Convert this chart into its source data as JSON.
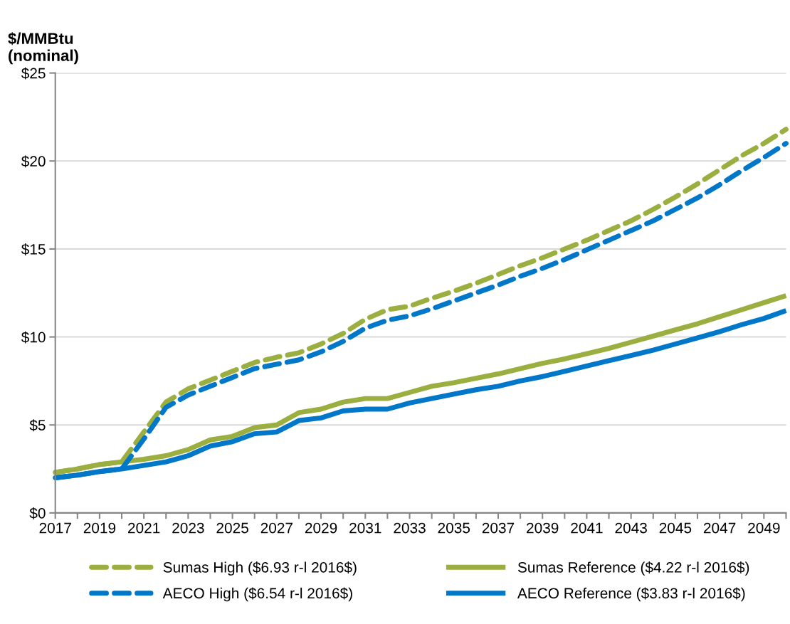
{
  "chart_data": {
    "type": "line",
    "ylabel": "$/MMBtu\n(nominal)",
    "x": [
      2017,
      2018,
      2019,
      2020,
      2021,
      2022,
      2023,
      2024,
      2025,
      2026,
      2027,
      2028,
      2029,
      2030,
      2031,
      2032,
      2033,
      2034,
      2035,
      2036,
      2037,
      2038,
      2039,
      2040,
      2041,
      2042,
      2043,
      2044,
      2045,
      2046,
      2047,
      2048,
      2049,
      2050
    ],
    "xlim": [
      2017,
      2050
    ],
    "xticks": [
      2017,
      {
        "value": 2018,
        "label": null
      },
      2019,
      {
        "value": 2020,
        "label": null
      },
      2021,
      {
        "value": 2022,
        "label": null
      },
      2023,
      {
        "value": 2024,
        "label": null
      },
      2025,
      {
        "value": 2026,
        "label": null
      },
      2027,
      {
        "value": 2028,
        "label": null
      },
      2029,
      {
        "value": 2030,
        "label": null
      },
      2031,
      {
        "value": 2032,
        "label": null
      },
      2033,
      {
        "value": 2034,
        "label": null
      },
      2035,
      {
        "value": 2036,
        "label": null
      },
      2037,
      {
        "value": 2038,
        "label": null
      },
      2039,
      {
        "value": 2040,
        "label": null
      },
      2041,
      {
        "value": 2042,
        "label": null
      },
      2043,
      {
        "value": 2044,
        "label": null
      },
      2045,
      {
        "value": 2046,
        "label": null
      },
      2047,
      {
        "value": 2048,
        "label": null
      },
      2049,
      {
        "value": 2050,
        "label": null
      }
    ],
    "ylim": [
      0,
      25
    ],
    "yticks": [
      {
        "value": 0,
        "label": "$0"
      },
      {
        "value": 5,
        "label": "$5"
      },
      {
        "value": 10,
        "label": "$10"
      },
      {
        "value": 15,
        "label": "$15"
      },
      {
        "value": 20,
        "label": "$20"
      },
      {
        "value": 25,
        "label": "$25"
      }
    ],
    "grid": "y",
    "legend": "bottom",
    "marker": "none",
    "series": [
      {
        "name": "Sumas High ($6.93 r-l 2016$)",
        "color": "#9aaf3f",
        "line_style": "dashed",
        "values": [
          2.3,
          2.5,
          2.75,
          2.9,
          4.6,
          6.3,
          7.05,
          7.55,
          8.05,
          8.55,
          8.85,
          9.1,
          9.6,
          10.2,
          11.0,
          11.55,
          11.75,
          12.2,
          12.6,
          13.05,
          13.55,
          14.05,
          14.5,
          15.0,
          15.5,
          16.05,
          16.6,
          17.25,
          17.95,
          18.7,
          19.5,
          20.3,
          21.0,
          21.8
        ]
      },
      {
        "name": "Sumas Reference ($4.22 r-l 2016$)",
        "color": "#9aaf3f",
        "line_style": "solid",
        "values": [
          2.3,
          2.5,
          2.75,
          2.9,
          3.05,
          3.25,
          3.6,
          4.15,
          4.35,
          4.85,
          5.0,
          5.7,
          5.9,
          6.3,
          6.5,
          6.5,
          6.85,
          7.2,
          7.4,
          7.65,
          7.9,
          8.2,
          8.5,
          8.75,
          9.05,
          9.35,
          9.7,
          10.05,
          10.4,
          10.75,
          11.15,
          11.55,
          11.95,
          12.35
        ]
      },
      {
        "name": "AECO High ($6.54 r-l 2016$)",
        "color": "#0077c8",
        "line_style": "dashed",
        "values": [
          2.0,
          2.15,
          2.35,
          2.5,
          4.2,
          6.0,
          6.7,
          7.2,
          7.7,
          8.2,
          8.45,
          8.7,
          9.15,
          9.75,
          10.5,
          10.95,
          11.2,
          11.6,
          12.05,
          12.5,
          12.95,
          13.45,
          13.9,
          14.4,
          14.95,
          15.5,
          16.05,
          16.6,
          17.25,
          17.9,
          18.65,
          19.45,
          20.2,
          21.0
        ]
      },
      {
        "name": "AECO Reference ($3.83 r-l 2016$)",
        "color": "#0077c8",
        "line_style": "solid",
        "values": [
          2.0,
          2.15,
          2.35,
          2.5,
          2.7,
          2.9,
          3.25,
          3.8,
          4.05,
          4.5,
          4.6,
          5.25,
          5.4,
          5.8,
          5.9,
          5.9,
          6.25,
          6.5,
          6.75,
          7.0,
          7.2,
          7.5,
          7.75,
          8.05,
          8.35,
          8.65,
          8.95,
          9.25,
          9.6,
          9.95,
          10.3,
          10.7,
          11.05,
          11.5
        ]
      }
    ]
  }
}
